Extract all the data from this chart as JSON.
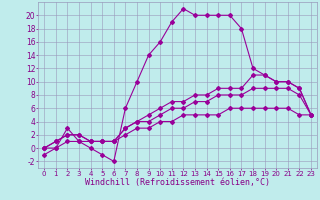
{
  "xlabel": "Windchill (Refroidissement éolien,°C)",
  "bg_color": "#c0ecec",
  "grid_color": "#9999bb",
  "line_color": "#990099",
  "xlim": [
    -0.5,
    23.5
  ],
  "ylim": [
    -3,
    22
  ],
  "xtick_fontsize": 5.0,
  "ytick_fontsize": 5.5,
  "xlabel_fontsize": 6.0,
  "series1_x": [
    0,
    1,
    2,
    3,
    4,
    5,
    6,
    7,
    8,
    9,
    10,
    11,
    12,
    13,
    14,
    15,
    16,
    17,
    18,
    19,
    20,
    21,
    22,
    23
  ],
  "series1_y": [
    -1,
    0,
    3,
    1,
    0,
    -1,
    -2,
    6,
    10,
    14,
    16,
    19,
    21,
    20,
    20,
    20,
    20,
    18,
    12,
    11,
    10,
    10,
    9,
    5
  ],
  "series2_x": [
    0,
    1,
    2,
    3,
    4,
    5,
    6,
    7,
    8,
    9,
    10,
    11,
    12,
    13,
    14,
    15,
    16,
    17,
    18,
    19,
    20,
    21,
    22,
    23
  ],
  "series2_y": [
    0,
    1,
    2,
    2,
    1,
    1,
    1,
    3,
    4,
    5,
    6,
    7,
    7,
    8,
    8,
    9,
    9,
    9,
    11,
    11,
    10,
    10,
    9,
    5
  ],
  "series3_x": [
    0,
    1,
    2,
    3,
    4,
    5,
    6,
    7,
    8,
    9,
    10,
    11,
    12,
    13,
    14,
    15,
    16,
    17,
    18,
    19,
    20,
    21,
    22,
    23
  ],
  "series3_y": [
    0,
    1,
    2,
    2,
    1,
    1,
    1,
    3,
    4,
    4,
    5,
    6,
    6,
    7,
    7,
    8,
    8,
    8,
    9,
    9,
    9,
    9,
    8,
    5
  ],
  "series4_x": [
    0,
    1,
    2,
    3,
    4,
    5,
    6,
    7,
    8,
    9,
    10,
    11,
    12,
    13,
    14,
    15,
    16,
    17,
    18,
    19,
    20,
    21,
    22,
    23
  ],
  "series4_y": [
    0,
    0,
    1,
    1,
    1,
    1,
    1,
    2,
    3,
    3,
    4,
    4,
    5,
    5,
    5,
    5,
    6,
    6,
    6,
    6,
    6,
    6,
    5,
    5
  ]
}
